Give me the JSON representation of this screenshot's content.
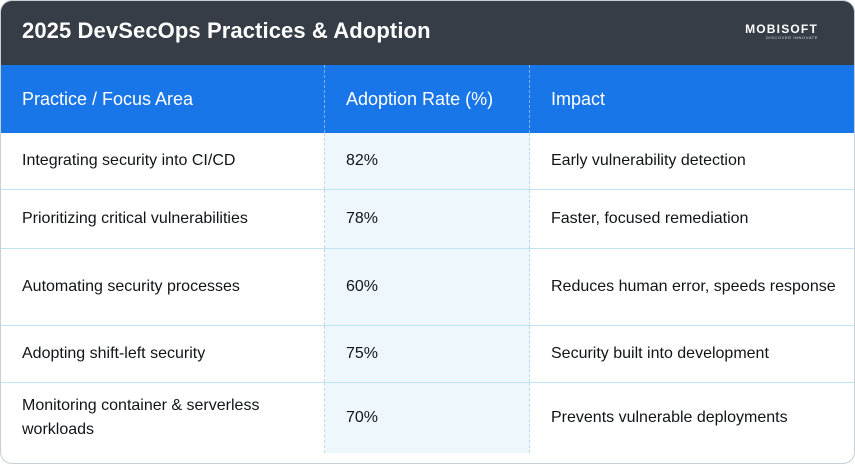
{
  "header": {
    "title": "2025 DevSecOps Practices & Adoption",
    "logo_text": "MOBISOFT",
    "logo_tagline": "DISCOVER INNOVATE"
  },
  "table": {
    "columns": [
      "Practice / Focus Area",
      "Adoption Rate (%)",
      "Impact"
    ],
    "rows": [
      [
        "Integrating security into CI/CD",
        "82%",
        "Early vulnerability detection"
      ],
      [
        "Prioritizing critical vulnerabilities",
        "78%",
        "Faster, focused remediation"
      ],
      [
        "Automating security processes",
        "60%",
        "Reduces human error, speeds response"
      ],
      [
        "Adopting shift-left security",
        "75%",
        "Security built into development"
      ],
      [
        "Monitoring container & serverless workloads",
        "70%",
        "Prevents vulnerable deployments"
      ]
    ]
  },
  "colors": {
    "title_bar": "#363d47",
    "header_row": "#1976e8",
    "adoption_column": "#eef7fc"
  }
}
